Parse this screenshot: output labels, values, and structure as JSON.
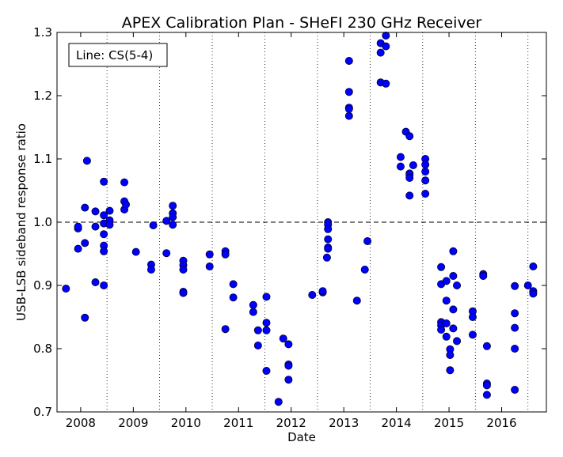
{
  "chart_data": {
    "type": "scatter",
    "title": "APEX Calibration Plan - SHeFI 230 GHz Receiver",
    "xlabel": "Date",
    "ylabel": "USB-LSB sideband response ratio",
    "annotation": "Line: CS(5-4)",
    "xlim": [
      2007.55,
      2016.85
    ],
    "ylim": [
      0.7,
      1.3
    ],
    "x_ticks": [
      2008,
      2009,
      2010,
      2011,
      2012,
      2013,
      2014,
      2015,
      2016
    ],
    "x_tick_labels": [
      "2008",
      "2009",
      "2010",
      "2011",
      "2012",
      "2013",
      "2014",
      "2015",
      "2016"
    ],
    "y_ticks": [
      0.7,
      0.8,
      0.9,
      1.0,
      1.1,
      1.2,
      1.3
    ],
    "y_tick_labels": [
      "0.7",
      "0.8",
      "0.9",
      "1.0",
      "1.1",
      "1.2",
      "1.3"
    ],
    "x_grid": "vertical dotted lines at year boundaries (mid-year positions)",
    "y_grid": false,
    "reference_line": 1.0,
    "marker_color": "#0000ff",
    "points": [
      [
        2007.72,
        0.895
      ],
      [
        2007.95,
        0.99
      ],
      [
        2007.95,
        0.993
      ],
      [
        2007.95,
        0.958
      ],
      [
        2008.08,
        1.023
      ],
      [
        2008.08,
        0.967
      ],
      [
        2008.08,
        0.849
      ],
      [
        2008.12,
        1.097
      ],
      [
        2008.28,
        1.017
      ],
      [
        2008.28,
        0.993
      ],
      [
        2008.28,
        0.905
      ],
      [
        2008.44,
        1.064
      ],
      [
        2008.44,
        1.011
      ],
      [
        2008.44,
        0.998
      ],
      [
        2008.44,
        0.981
      ],
      [
        2008.44,
        0.963
      ],
      [
        2008.44,
        0.954
      ],
      [
        2008.44,
        0.9
      ],
      [
        2008.55,
        1.018
      ],
      [
        2008.55,
        1.003
      ],
      [
        2008.55,
        0.996
      ],
      [
        2008.83,
        1.063
      ],
      [
        2008.83,
        1.033
      ],
      [
        2008.83,
        1.02
      ],
      [
        2008.86,
        1.028
      ],
      [
        2009.05,
        0.953
      ],
      [
        2009.34,
        0.933
      ],
      [
        2009.34,
        0.925
      ],
      [
        2009.38,
        0.995
      ],
      [
        2009.63,
        1.002
      ],
      [
        2009.63,
        0.951
      ],
      [
        2009.75,
        1.026
      ],
      [
        2009.75,
        1.014
      ],
      [
        2009.75,
        1.008
      ],
      [
        2009.75,
        0.996
      ],
      [
        2009.95,
        0.939
      ],
      [
        2009.95,
        0.932
      ],
      [
        2009.95,
        0.925
      ],
      [
        2009.95,
        0.89
      ],
      [
        2009.95,
        0.888
      ],
      [
        2010.45,
        0.949
      ],
      [
        2010.45,
        0.93
      ],
      [
        2010.75,
        0.954
      ],
      [
        2010.75,
        0.949
      ],
      [
        2010.75,
        0.831
      ],
      [
        2010.9,
        0.902
      ],
      [
        2010.9,
        0.881
      ],
      [
        2011.28,
        0.869
      ],
      [
        2011.28,
        0.858
      ],
      [
        2011.37,
        0.829
      ],
      [
        2011.37,
        0.805
      ],
      [
        2011.53,
        0.882
      ],
      [
        2011.53,
        0.841
      ],
      [
        2011.53,
        0.829
      ],
      [
        2011.53,
        0.765
      ],
      [
        2011.76,
        0.716
      ],
      [
        2011.85,
        0.816
      ],
      [
        2011.95,
        0.807
      ],
      [
        2011.95,
        0.775
      ],
      [
        2011.95,
        0.773
      ],
      [
        2011.95,
        0.751
      ],
      [
        2012.4,
        0.885
      ],
      [
        2012.6,
        0.889
      ],
      [
        2012.6,
        0.891
      ],
      [
        2012.68,
        0.944
      ],
      [
        2012.7,
        1.0
      ],
      [
        2012.7,
        0.996
      ],
      [
        2012.7,
        0.989
      ],
      [
        2012.7,
        0.973
      ],
      [
        2012.7,
        0.96
      ],
      [
        2012.7,
        0.958
      ],
      [
        2013.1,
        1.255
      ],
      [
        2013.1,
        1.206
      ],
      [
        2013.1,
        1.181
      ],
      [
        2013.1,
        1.179
      ],
      [
        2013.1,
        1.168
      ],
      [
        2013.25,
        0.876
      ],
      [
        2013.4,
        0.925
      ],
      [
        2013.45,
        0.97
      ],
      [
        2013.7,
        1.283
      ],
      [
        2013.7,
        1.268
      ],
      [
        2013.7,
        1.221
      ],
      [
        2013.8,
        1.295
      ],
      [
        2013.8,
        1.278
      ],
      [
        2013.8,
        1.219
      ],
      [
        2014.08,
        1.103
      ],
      [
        2014.08,
        1.088
      ],
      [
        2014.18,
        1.143
      ],
      [
        2014.25,
        1.136
      ],
      [
        2014.25,
        1.077
      ],
      [
        2014.25,
        1.075
      ],
      [
        2014.25,
        1.07
      ],
      [
        2014.25,
        1.042
      ],
      [
        2014.32,
        1.09
      ],
      [
        2014.55,
        1.1
      ],
      [
        2014.55,
        1.091
      ],
      [
        2014.55,
        1.08
      ],
      [
        2014.55,
        1.066
      ],
      [
        2014.55,
        1.045
      ],
      [
        2014.85,
        0.929
      ],
      [
        2014.85,
        0.902
      ],
      [
        2014.85,
        0.842
      ],
      [
        2014.85,
        0.837
      ],
      [
        2014.85,
        0.83
      ],
      [
        2014.95,
        0.907
      ],
      [
        2014.95,
        0.876
      ],
      [
        2014.95,
        0.84
      ],
      [
        2014.95,
        0.819
      ],
      [
        2015.02,
        0.799
      ],
      [
        2015.02,
        0.79
      ],
      [
        2015.02,
        0.766
      ],
      [
        2015.08,
        0.954
      ],
      [
        2015.08,
        0.915
      ],
      [
        2015.08,
        0.862
      ],
      [
        2015.08,
        0.832
      ],
      [
        2015.15,
        0.9
      ],
      [
        2015.15,
        0.812
      ],
      [
        2015.45,
        0.859
      ],
      [
        2015.45,
        0.85
      ],
      [
        2015.45,
        0.822
      ],
      [
        2015.65,
        0.918
      ],
      [
        2015.65,
        0.915
      ],
      [
        2015.72,
        0.804
      ],
      [
        2015.72,
        0.745
      ],
      [
        2015.72,
        0.742
      ],
      [
        2015.72,
        0.727
      ],
      [
        2016.25,
        0.899
      ],
      [
        2016.25,
        0.856
      ],
      [
        2016.25,
        0.833
      ],
      [
        2016.25,
        0.8
      ],
      [
        2016.25,
        0.735
      ],
      [
        2016.5,
        0.9
      ],
      [
        2016.6,
        0.93
      ],
      [
        2016.6,
        0.891
      ],
      [
        2016.6,
        0.887
      ]
    ]
  }
}
